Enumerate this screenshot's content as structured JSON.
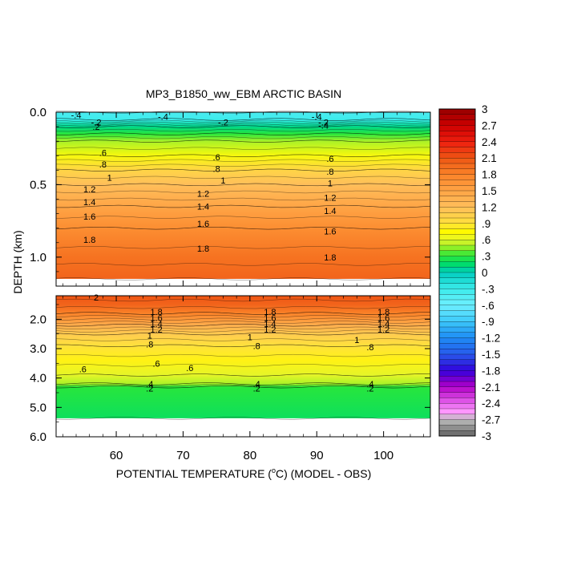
{
  "chart_data": {
    "type": "heatmap",
    "title": "MP3_B1850_ww_EBM ARCTIC BASIN",
    "xlabel_pre": "POTENTIAL TEMPERATURE (",
    "xlabel_sup": "o",
    "xlabel_post": "C) (MODEL - OBS)",
    "ylabel": "DEPTH (km)",
    "x_ticks": [
      "60",
      "70",
      "80",
      "90",
      "100"
    ],
    "xlim": [
      51,
      107
    ],
    "upper_panel": {
      "ylim": [
        0.0,
        1.2
      ],
      "y_ticks": [
        "0.0",
        "0.5",
        "1.0"
      ],
      "grid": false
    },
    "lower_panel": {
      "ylim": [
        1.2,
        6.0
      ],
      "y_ticks": [
        "2.0",
        "3.0",
        "4.0",
        "5.0",
        "6.0"
      ],
      "grid": false
    },
    "colorbar": {
      "min": -3,
      "max": 3,
      "step": 0.1,
      "labels": [
        "3",
        "2.7",
        "2.4",
        "2.1",
        "1.8",
        "1.5",
        "1.2",
        ".9",
        ".6",
        ".3",
        "0",
        "-.3",
        "-.6",
        "-.9",
        "-1.2",
        "-1.5",
        "-1.8",
        "-2.1",
        "-2.4",
        "-2.7",
        "-3"
      ]
    },
    "upper_field": [
      {
        "depth": 0.0,
        "value": -0.4
      },
      {
        "depth": 0.05,
        "value": -0.3
      },
      {
        "depth": 0.1,
        "value": 0.1
      },
      {
        "depth": 0.15,
        "value": 0.3
      },
      {
        "depth": 0.2,
        "value": 0.5
      },
      {
        "depth": 0.3,
        "value": 0.7
      },
      {
        "depth": 0.4,
        "value": 1.0
      },
      {
        "depth": 0.5,
        "value": 1.2
      },
      {
        "depth": 0.65,
        "value": 1.5
      },
      {
        "depth": 0.8,
        "value": 1.7
      },
      {
        "depth": 1.0,
        "value": 1.85
      },
      {
        "depth": 1.15,
        "value": 2.0
      }
    ],
    "lower_field": [
      {
        "depth": 1.2,
        "value": 2.05
      },
      {
        "depth": 1.5,
        "value": 1.95
      },
      {
        "depth": 1.8,
        "value": 1.8
      },
      {
        "depth": 2.2,
        "value": 1.4
      },
      {
        "depth": 2.5,
        "value": 1.1
      },
      {
        "depth": 2.9,
        "value": 0.9
      },
      {
        "depth": 3.4,
        "value": 0.75
      },
      {
        "depth": 3.9,
        "value": 0.6
      },
      {
        "depth": 4.2,
        "value": 0.5
      },
      {
        "depth": 4.3,
        "value": 0.3
      },
      {
        "depth": 5.37,
        "value": 0.2
      }
    ],
    "contour_labels": [
      {
        "text": "-.4",
        "x": 54,
        "depth": 0.02
      },
      {
        "text": "-.4",
        "x": 67,
        "depth": 0.03
      },
      {
        "text": "-.4",
        "x": 90,
        "depth": 0.03
      },
      {
        "text": "-.2",
        "x": 57,
        "depth": 0.07
      },
      {
        "text": "-.2",
        "x": 76,
        "depth": 0.07
      },
      {
        "text": "-.2",
        "x": 91,
        "depth": 0.07
      },
      {
        "text": ".2",
        "x": 57,
        "depth": 0.1
      },
      {
        "text": "-.4",
        "x": 91,
        "depth": 0.09
      },
      {
        "text": ".6",
        "x": 58,
        "depth": 0.28
      },
      {
        "text": ".6",
        "x": 75,
        "depth": 0.31
      },
      {
        "text": ".6",
        "x": 92,
        "depth": 0.32
      },
      {
        "text": ".8",
        "x": 58,
        "depth": 0.36
      },
      {
        "text": ".8",
        "x": 75,
        "depth": 0.39
      },
      {
        "text": ".8",
        "x": 92,
        "depth": 0.41
      },
      {
        "text": "1",
        "x": 59,
        "depth": 0.45
      },
      {
        "text": "1",
        "x": 76,
        "depth": 0.47
      },
      {
        "text": "1",
        "x": 92,
        "depth": 0.49
      },
      {
        "text": "1.2",
        "x": 56,
        "depth": 0.53
      },
      {
        "text": "1.2",
        "x": 73,
        "depth": 0.56
      },
      {
        "text": "1.2",
        "x": 92,
        "depth": 0.59
      },
      {
        "text": "1.4",
        "x": 56,
        "depth": 0.62
      },
      {
        "text": "1.4",
        "x": 73,
        "depth": 0.65
      },
      {
        "text": "1.4",
        "x": 92,
        "depth": 0.68
      },
      {
        "text": "1.6",
        "x": 56,
        "depth": 0.72
      },
      {
        "text": "1.6",
        "x": 73,
        "depth": 0.77
      },
      {
        "text": "1.6",
        "x": 92,
        "depth": 0.82
      },
      {
        "text": "1.8",
        "x": 56,
        "depth": 0.88
      },
      {
        "text": "1.8",
        "x": 73,
        "depth": 0.94
      },
      {
        "text": "1.8",
        "x": 92,
        "depth": 1.0
      },
      {
        "text": "2",
        "x": 57,
        "depth": 1.26
      },
      {
        "text": "1.8",
        "x": 66,
        "depth": 1.75
      },
      {
        "text": "1.6",
        "x": 66,
        "depth": 1.95
      },
      {
        "text": "1.4",
        "x": 66,
        "depth": 2.15
      },
      {
        "text": "1.2",
        "x": 66,
        "depth": 2.35
      },
      {
        "text": "1",
        "x": 65,
        "depth": 2.55
      },
      {
        "text": ".8",
        "x": 65,
        "depth": 2.85
      },
      {
        "text": "1.8",
        "x": 83,
        "depth": 1.75
      },
      {
        "text": "1.6",
        "x": 83,
        "depth": 1.95
      },
      {
        "text": "1.4",
        "x": 83,
        "depth": 2.15
      },
      {
        "text": "1.2",
        "x": 83,
        "depth": 2.35
      },
      {
        "text": "1",
        "x": 80,
        "depth": 2.6
      },
      {
        "text": ".8",
        "x": 81,
        "depth": 2.9
      },
      {
        "text": "1.8",
        "x": 100,
        "depth": 1.75
      },
      {
        "text": "1.6",
        "x": 100,
        "depth": 1.95
      },
      {
        "text": "1.4",
        "x": 100,
        "depth": 2.15
      },
      {
        "text": "1.2",
        "x": 100,
        "depth": 2.35
      },
      {
        "text": "1",
        "x": 96,
        "depth": 2.7
      },
      {
        "text": ".8",
        "x": 98,
        "depth": 2.95
      },
      {
        "text": ".6",
        "x": 55,
        "depth": 3.7
      },
      {
        "text": ".6",
        "x": 66,
        "depth": 3.5
      },
      {
        "text": ".6",
        "x": 71,
        "depth": 3.65
      },
      {
        "text": ".4",
        "x": 65,
        "depth": 4.2
      },
      {
        "text": ".2",
        "x": 65,
        "depth": 4.35
      },
      {
        "text": ".4",
        "x": 81,
        "depth": 4.2
      },
      {
        "text": ".2",
        "x": 81,
        "depth": 4.35
      },
      {
        "text": ".4",
        "x": 98,
        "depth": 4.2
      },
      {
        "text": ".2",
        "x": 98,
        "depth": 4.35
      }
    ]
  }
}
